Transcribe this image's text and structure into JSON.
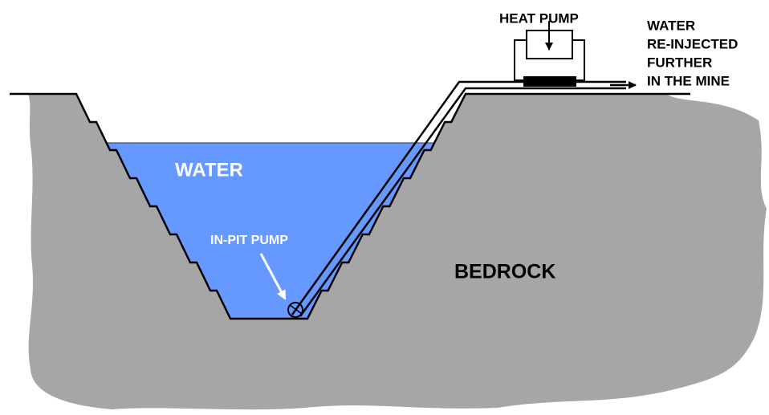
{
  "labels": {
    "heat_pump": "HEAT PUMP",
    "reinjected": [
      "WATER",
      "RE-INJECTED",
      "FURTHER",
      "IN THE MINE"
    ],
    "water": "WATER",
    "in_pit_pump": "IN-PIT PUMP",
    "bedrock": "BEDROCK"
  }
}
